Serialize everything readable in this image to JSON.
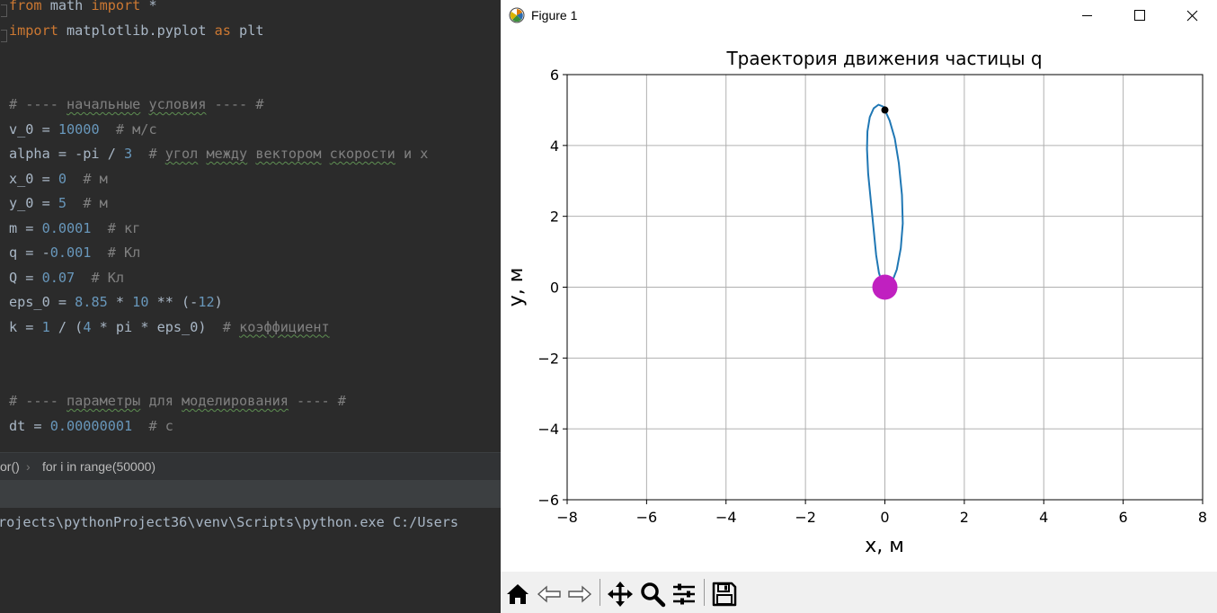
{
  "editor": {
    "lines": [
      [
        {
          "t": "from",
          "c": "kw"
        },
        {
          "t": " math "
        },
        {
          "t": "import",
          "c": "kw"
        },
        {
          "t": " *"
        }
      ],
      [
        {
          "t": "import",
          "c": "kw"
        },
        {
          "t": " matplotlib.pyplot "
        },
        {
          "t": "as",
          "c": "kw"
        },
        {
          "t": " plt"
        }
      ],
      [],
      [],
      [
        {
          "t": "# ---- ",
          "c": "cmt"
        },
        {
          "t": "начальные",
          "c": "cmt sq"
        },
        {
          "t": " ",
          "c": "cmt"
        },
        {
          "t": "условия",
          "c": "cmt sq"
        },
        {
          "t": " ---- #",
          "c": "cmt"
        }
      ],
      [
        {
          "t": "v_0 = "
        },
        {
          "t": "10000",
          "c": "num"
        },
        {
          "t": "  # м/с",
          "c": "cmt"
        }
      ],
      [
        {
          "t": "alpha = -pi / "
        },
        {
          "t": "3",
          "c": "num"
        },
        {
          "t": "  # ",
          "c": "cmt"
        },
        {
          "t": "угол",
          "c": "cmt sq"
        },
        {
          "t": " ",
          "c": "cmt"
        },
        {
          "t": "между",
          "c": "cmt sq"
        },
        {
          "t": " ",
          "c": "cmt"
        },
        {
          "t": "вектором",
          "c": "cmt sq"
        },
        {
          "t": " ",
          "c": "cmt"
        },
        {
          "t": "скорости",
          "c": "cmt sq"
        },
        {
          "t": " и x",
          "c": "cmt"
        }
      ],
      [
        {
          "t": "x_0 = "
        },
        {
          "t": "0",
          "c": "num"
        },
        {
          "t": "  # м",
          "c": "cmt"
        }
      ],
      [
        {
          "t": "y_0 = "
        },
        {
          "t": "5",
          "c": "num"
        },
        {
          "t": "  # м",
          "c": "cmt"
        }
      ],
      [
        {
          "t": "m = "
        },
        {
          "t": "0.0001",
          "c": "num"
        },
        {
          "t": "  # кг",
          "c": "cmt"
        }
      ],
      [
        {
          "t": "q = -"
        },
        {
          "t": "0.001",
          "c": "num"
        },
        {
          "t": "  # Кл",
          "c": "cmt"
        }
      ],
      [
        {
          "t": "Q = "
        },
        {
          "t": "0.07",
          "c": "num"
        },
        {
          "t": "  # Кл",
          "c": "cmt"
        }
      ],
      [
        {
          "t": "eps_0 = "
        },
        {
          "t": "8.85",
          "c": "num"
        },
        {
          "t": " * "
        },
        {
          "t": "10",
          "c": "num"
        },
        {
          "t": " ** (-"
        },
        {
          "t": "12",
          "c": "num"
        },
        {
          "t": ")"
        }
      ],
      [
        {
          "t": "k = "
        },
        {
          "t": "1",
          "c": "num"
        },
        {
          "t": " / ("
        },
        {
          "t": "4",
          "c": "num"
        },
        {
          "t": " * pi * eps_0)"
        },
        {
          "t": "  # ",
          "c": "cmt"
        },
        {
          "t": "коэффициент",
          "c": "cmt sq"
        }
      ],
      [],
      [],
      [
        {
          "t": "# ---- ",
          "c": "cmt"
        },
        {
          "t": "параметры",
          "c": "cmt sq"
        },
        {
          "t": " для ",
          "c": "cmt"
        },
        {
          "t": "моделирования",
          "c": "cmt sq"
        },
        {
          "t": " ---- #",
          "c": "cmt"
        }
      ],
      [
        {
          "t": "dt = "
        },
        {
          "t": "0.00000001",
          "c": "num"
        },
        {
          "t": "  # с",
          "c": "cmt"
        }
      ]
    ]
  },
  "breadcrumb": {
    "parent": "or()",
    "separator": "›",
    "current": "for i in range(50000)"
  },
  "console": {
    "line": "rojects\\pythonProject36\\venv\\Scripts\\python.exe C:/Users"
  },
  "figure_window": {
    "title": "Figure 1",
    "minimize_icon": "minimize-icon",
    "maximize_icon": "maximize-icon",
    "close_icon": "close-icon"
  },
  "toolbar": {
    "icons": [
      "home-icon",
      "back-icon",
      "forward-icon",
      "pan-icon",
      "zoom-icon",
      "configure-subplots-icon",
      "save-icon"
    ]
  },
  "chart_data": {
    "type": "line",
    "title": "Траектория движения частицы q",
    "xlabel": "x, м",
    "ylabel": "y, м",
    "xlim": [
      -8,
      8
    ],
    "ylim": [
      -6,
      6
    ],
    "xticks": [
      -8,
      -6,
      -4,
      -2,
      0,
      2,
      4,
      6,
      8
    ],
    "yticks": [
      -6,
      -4,
      -2,
      0,
      2,
      4,
      6
    ],
    "xtick_labels": [
      "−8",
      "−6",
      "−4",
      "−2",
      "0",
      "2",
      "4",
      "6",
      "8"
    ],
    "ytick_labels": [
      "−6",
      "−4",
      "−2",
      "0",
      "2",
      "4",
      "6"
    ],
    "grid": true,
    "series": [
      {
        "color": "#1f77b4",
        "x": [
          0.0,
          0.12,
          0.25,
          0.35,
          0.43,
          0.45,
          0.4,
          0.3,
          0.18,
          0.05,
          -0.06,
          -0.15,
          -0.22,
          -0.28,
          -0.35,
          -0.42,
          -0.45,
          -0.44,
          -0.38,
          -0.28,
          -0.16,
          -0.05,
          0.02,
          0.0
        ],
        "y": [
          5.0,
          4.7,
          4.2,
          3.5,
          2.6,
          1.8,
          1.1,
          0.5,
          0.15,
          0.0,
          0.1,
          0.4,
          0.9,
          1.6,
          2.4,
          3.2,
          3.9,
          4.4,
          4.8,
          5.05,
          5.15,
          5.1,
          5.05,
          5.0
        ]
      }
    ],
    "markers": [
      {
        "name": "particle-q",
        "x": 0.0,
        "y": 5.0,
        "color": "#000000",
        "size": "small"
      },
      {
        "name": "charge-Q",
        "x": 0.0,
        "y": 0.0,
        "color": "#c020c0",
        "size": "large"
      }
    ]
  }
}
